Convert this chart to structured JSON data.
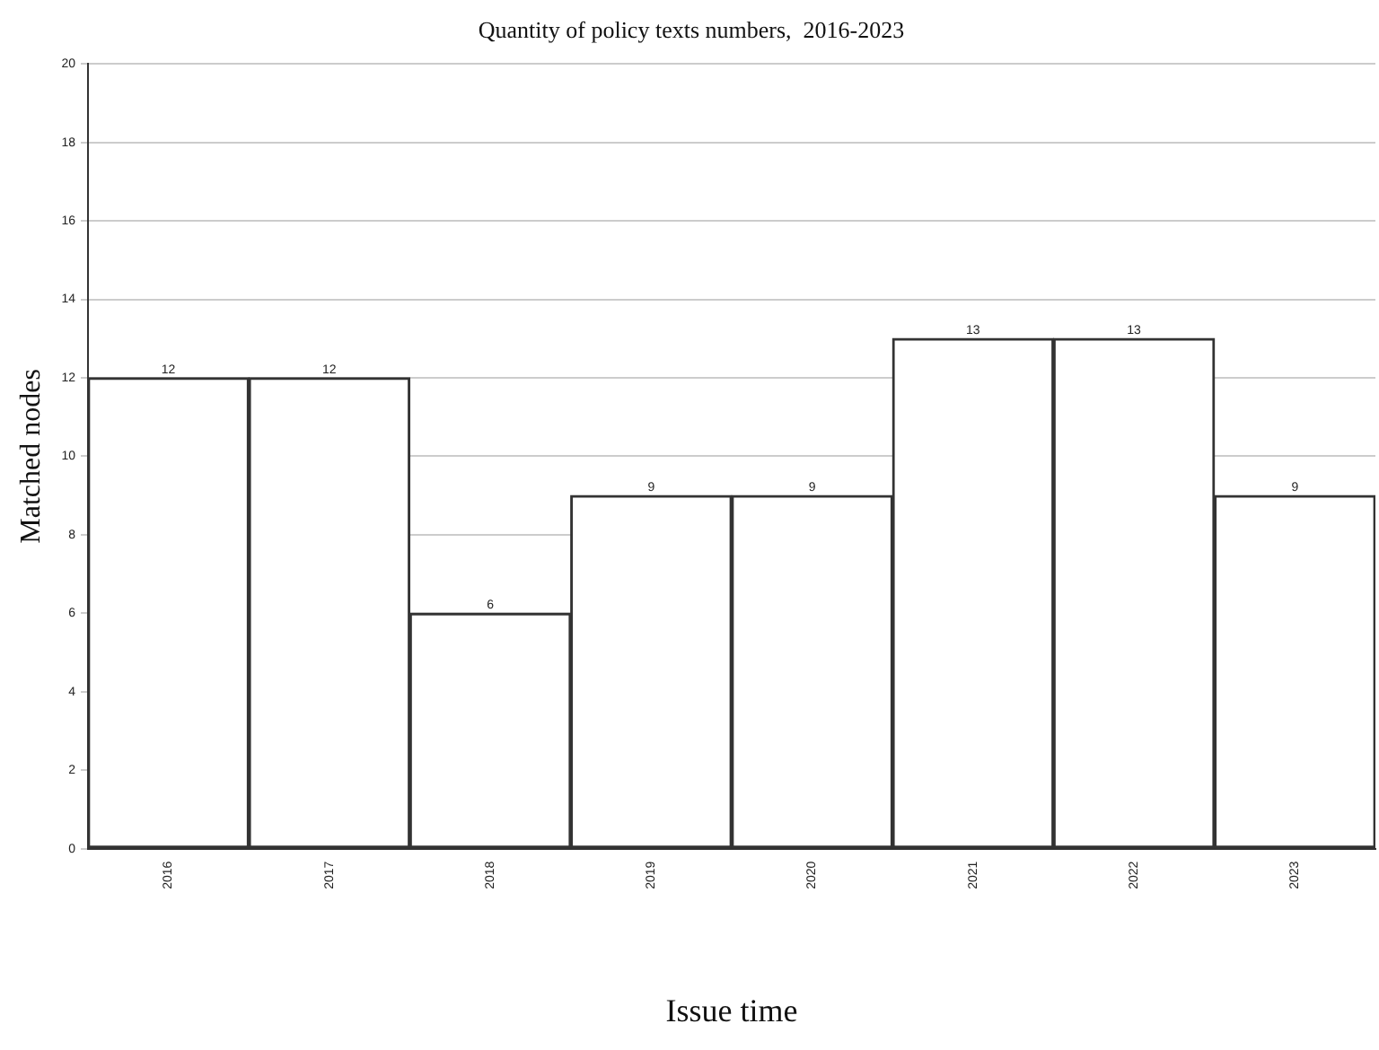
{
  "chart_data": {
    "type": "bar",
    "title": "Quantity of policy texts numbers,  2016-2023",
    "xlabel": "Issue time",
    "ylabel": "Matched nodes",
    "categories": [
      "2016",
      "2017",
      "2018",
      "2019",
      "2020",
      "2021",
      "2022",
      "2023"
    ],
    "values": [
      12,
      12,
      6,
      9,
      9,
      13,
      13,
      9
    ],
    "color": "#ffffff",
    "ylim": [
      0,
      20
    ],
    "yticks": [
      0,
      2,
      4,
      6,
      8,
      10,
      12,
      14,
      16,
      18,
      20
    ],
    "grid": "y",
    "data_labels": true,
    "legend": false
  }
}
